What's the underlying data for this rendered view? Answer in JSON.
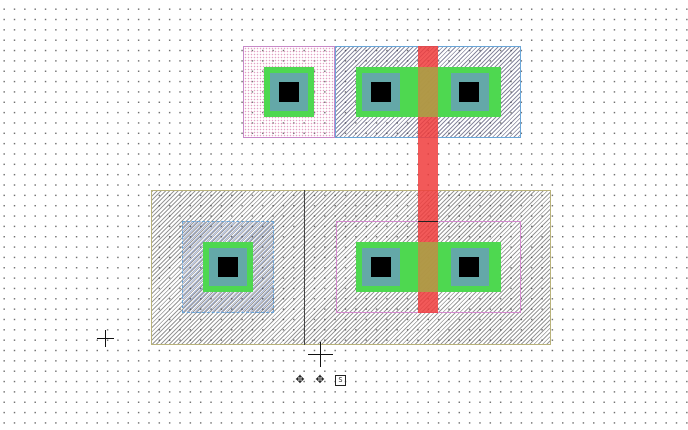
{
  "canvas": {
    "title": "",
    "grid": "dotted",
    "background_color": "#ffffff"
  },
  "colors": {
    "poly": "#ef4040",
    "diffusion_contact": "#4ed850",
    "metal_contact": "#64a8a8",
    "via_core": "#000000",
    "nwell_border": "#b9b27a",
    "select_pink": "#d58ad0",
    "select_blue": "#6aa6d8"
  },
  "layout": {
    "top_device": {
      "name": "top-active-region",
      "contacts": 3
    },
    "bottom_device": {
      "name": "bottom-active-region",
      "contacts": 3
    },
    "gate": {
      "layer": "poly"
    }
  },
  "tools": {
    "icons": [
      "crosshair-cursor-icon",
      "move-icon",
      "move-icon",
      "stamp-icon"
    ]
  }
}
